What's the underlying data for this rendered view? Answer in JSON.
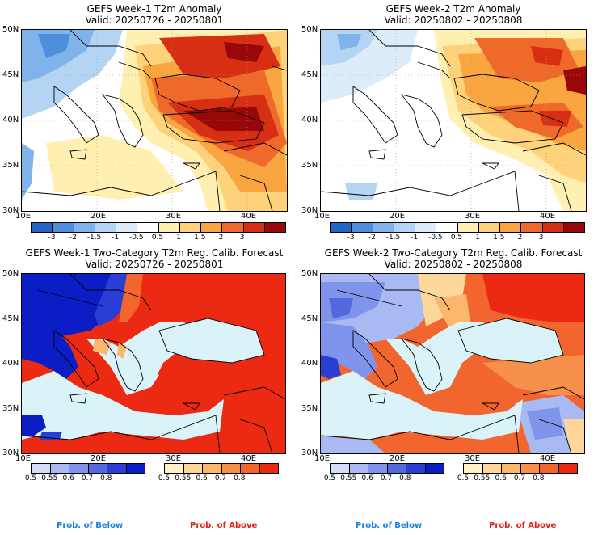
{
  "panels": {
    "p1": {
      "title": "GEFS Week-1 T2m Anomaly",
      "valid": "Valid: 20250726 - 20250801"
    },
    "p2": {
      "title": "GEFS Week-2 T2m Anomaly",
      "valid": "Valid: 20250802 - 20250808"
    },
    "p3": {
      "title": "GEFS Week-1 Two-Category T2m Reg. Calib. Forecast",
      "valid": "Valid: 20250726 - 20250801"
    },
    "p4": {
      "title": "GEFS Week-2 Two-Category T2m Reg. Calib. Forecast",
      "valid": "Valid: 20250802 - 20250808"
    }
  },
  "axes": {
    "lat_labels": [
      "50N",
      "45N",
      "40N",
      "35N",
      "30N"
    ],
    "lon_labels": [
      "10E",
      "20E",
      "30E",
      "40E"
    ]
  },
  "anomaly_colorbar": {
    "labels": [
      "-3",
      "-2",
      "-1.5",
      "-1",
      "-0.5",
      "0.5",
      "1",
      "1.5",
      "2",
      "3"
    ],
    "colors": [
      "#2166c4",
      "#4d8fdc",
      "#7fb3ea",
      "#b3d5f3",
      "#dcecfa",
      "#ffffff",
      "#ffefb0",
      "#fdd27a",
      "#f9a641",
      "#ef6a2a",
      "#d62f14",
      "#990808"
    ]
  },
  "prob_colorbar": {
    "below_labels": [
      "0.5",
      "0.55",
      "0.6",
      "0.7",
      "0.8"
    ],
    "below_colors": [
      "#d4ddf8",
      "#a9b9f2",
      "#7f94ea",
      "#5468e0",
      "#2a3ed6",
      "#0b1ec6"
    ],
    "above_labels": [
      "0.5",
      "0.55",
      "0.6",
      "0.7",
      "0.8"
    ],
    "above_colors": [
      "#fff0c8",
      "#fdd89a",
      "#fbb86c",
      "#f7904a",
      "#f3652e",
      "#ec2a14"
    ]
  },
  "legend": {
    "below": "Prob. of Below",
    "above": "Prob. of Above",
    "below_color": "#1a7fe0",
    "above_color": "#e0201a"
  },
  "colors": {
    "sea_light": "#d9f3f8"
  }
}
